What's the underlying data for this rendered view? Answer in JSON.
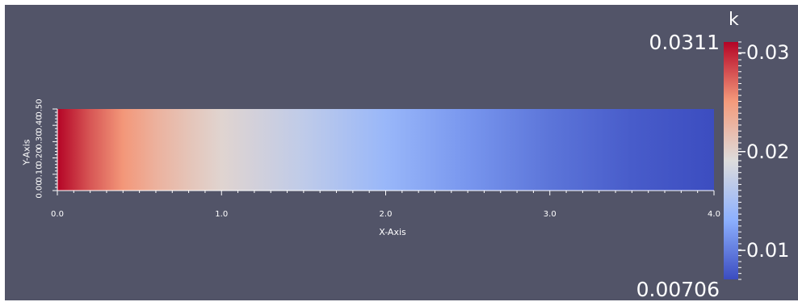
{
  "viewport": {
    "background": "#525468"
  },
  "scalar_bar": {
    "title": "k",
    "range_max": "0.0311",
    "range_min": "0.00706",
    "ticks": [
      {
        "value": 0.03,
        "label": "0.03"
      },
      {
        "value": 0.02,
        "label": "0.02"
      },
      {
        "value": 0.01,
        "label": "0.01"
      }
    ],
    "colormap": [
      "#3b4cc0",
      "#8db0fe",
      "#dddcdc",
      "#f49a7b",
      "#b40426"
    ]
  },
  "chart_data": {
    "type": "heatmap",
    "xlabel": "X-Axis",
    "ylabel": "Y-Axis",
    "xlim": [
      0.0,
      4.0
    ],
    "ylim": [
      0.0,
      0.5
    ],
    "x_ticks": [
      "0.0",
      "1.0",
      "2.0",
      "3.0",
      "4.0"
    ],
    "y_ticks": [
      "0.00",
      "0.10",
      "0.20",
      "0.30",
      "0.40",
      "0.50"
    ],
    "x_stops": [
      0.0,
      0.2,
      0.4,
      0.6,
      0.8,
      1.0,
      1.5,
      2.0,
      2.5,
      3.0,
      3.5,
      4.0
    ],
    "k_stops": [
      0.0311,
      0.0278,
      0.0252,
      0.023,
      0.0213,
      0.0198,
      0.0168,
      0.014,
      0.0115,
      0.0095,
      0.008,
      0.0071
    ],
    "color_range": [
      0.00706,
      0.0311
    ]
  }
}
